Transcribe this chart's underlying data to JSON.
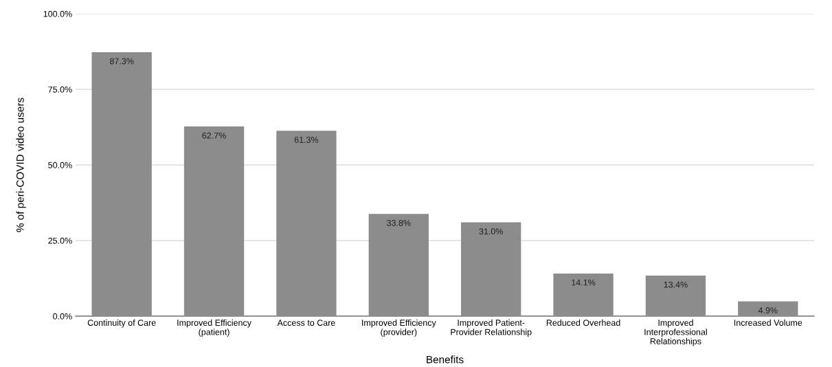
{
  "chart_data": {
    "type": "bar",
    "xlabel": "Benefits",
    "ylabel": "% of peri-COVID video users",
    "categories": [
      "Continuity of Care",
      "Improved Efficiency\n(patient)",
      "Access to Care",
      "Improved Efficiency\n(provider)",
      "Improved Patient-\nProvider Relationship",
      "Reduced Overhead",
      "Improved\nInterprofessional\nRelationships",
      "Increased Volume"
    ],
    "values": [
      87.3,
      62.7,
      61.3,
      33.8,
      31.0,
      14.1,
      13.4,
      4.9
    ],
    "value_labels": [
      "87.3%",
      "62.7%",
      "61.3%",
      "33.8%",
      "31.0%",
      "14.1%",
      "13.4%",
      "4.9%"
    ],
    "color": "#8c8c8c",
    "ylim": [
      0,
      100
    ],
    "yticks": [
      {
        "value": 0,
        "label": "0.0%"
      },
      {
        "value": 25,
        "label": "25.0%"
      },
      {
        "value": 50,
        "label": "50.0%"
      },
      {
        "value": 75,
        "label": "75.0%"
      },
      {
        "value": 100,
        "label": "100.0%"
      }
    ],
    "grid": "y",
    "legend": false
  }
}
